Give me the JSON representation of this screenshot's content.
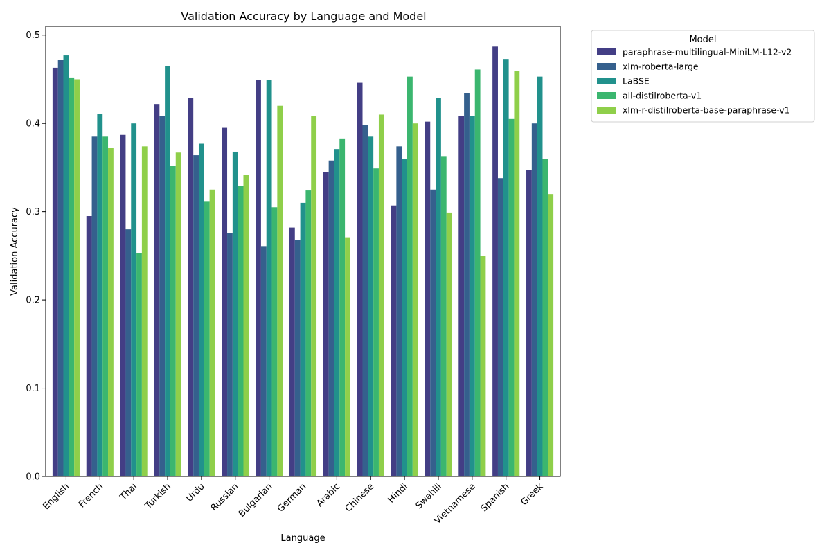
{
  "chart_data": {
    "type": "bar",
    "title": "Validation Accuracy by Language and Model",
    "xlabel": "Language",
    "ylabel": "Validation Accuracy",
    "ylim": [
      0,
      0.51
    ],
    "yticks": [
      "0.0",
      "0.1",
      "0.2",
      "0.3",
      "0.4",
      "0.5"
    ],
    "grid": false,
    "legend_title": "Model",
    "legend_position": "outside-top-right",
    "categories": [
      "English",
      "French",
      "Thai",
      "Turkish",
      "Urdu",
      "Russian",
      "Bulgarian",
      "German",
      "Arabic",
      "Chinese",
      "Hindi",
      "Swahili",
      "Vietnamese",
      "Spanish",
      "Greek"
    ],
    "series": [
      {
        "name": "paraphrase-multilingual-MiniLM-L12-v2",
        "color": "#433e85",
        "values": [
          0.463,
          0.295,
          0.387,
          0.422,
          0.429,
          0.395,
          0.449,
          0.282,
          0.345,
          0.446,
          0.307,
          0.402,
          0.408,
          0.487,
          0.347
        ]
      },
      {
        "name": "xlm-roberta-large",
        "color": "#35608d",
        "values": [
          0.472,
          0.385,
          0.28,
          0.408,
          0.364,
          0.276,
          0.261,
          0.268,
          0.358,
          0.398,
          0.374,
          0.325,
          0.434,
          0.338,
          0.4
        ]
      },
      {
        "name": "LaBSE",
        "color": "#21918c",
        "values": [
          0.477,
          0.411,
          0.4,
          0.465,
          0.377,
          0.368,
          0.449,
          0.31,
          0.371,
          0.385,
          0.36,
          0.429,
          0.408,
          0.473,
          0.453
        ]
      },
      {
        "name": "all-distilroberta-v1",
        "color": "#3bb66f",
        "values": [
          0.452,
          0.385,
          0.253,
          0.352,
          0.312,
          0.329,
          0.305,
          0.324,
          0.383,
          0.349,
          0.453,
          0.363,
          0.461,
          0.405,
          0.36
        ]
      },
      {
        "name": "xlm-r-distilroberta-base-paraphrase-v1",
        "color": "#8fcf4a",
        "values": [
          0.45,
          0.372,
          0.374,
          0.367,
          0.325,
          0.342,
          0.42,
          0.408,
          0.271,
          0.41,
          0.4,
          0.299,
          0.25,
          0.459,
          0.32
        ]
      }
    ]
  }
}
